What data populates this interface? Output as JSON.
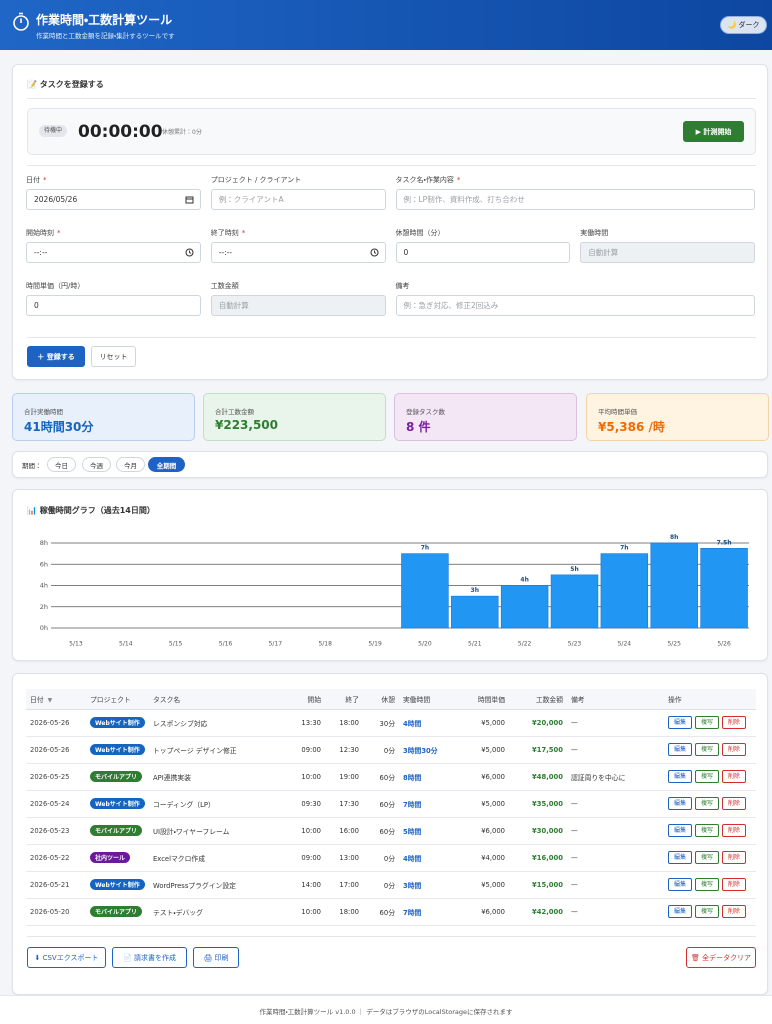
{
  "header": {
    "title": "作業時間・工数計算ツール",
    "subtitle": "作業時間と工数金額を記録・集計するツールです",
    "theme_button": "🌙 ダーク"
  },
  "form": {
    "title": "📝 タスクを登録する",
    "timer": {
      "status": "待機中",
      "time": "00:00:00",
      "break_total": "休憩累計：0分",
      "start_button": "▶ 計測開始"
    },
    "fields": [
      {
        "label": "日付",
        "required": "*",
        "value": "2026/05/26",
        "icon": "date"
      },
      {
        "label": "プロジェクト / クライアント",
        "placeholder": "例：クライアントA"
      },
      {
        "label": "タスク名・作業内容",
        "required": "*",
        "placeholder": "例：LP制作、資料作成、打ち合わせ"
      },
      {
        "label": "開始時刻",
        "required": "*",
        "value": "--:--",
        "icon": "time"
      },
      {
        "label": "終了時刻",
        "required": "*",
        "value": "--:--",
        "icon": "time"
      },
      {
        "label": "休憩時間（分）",
        "value": "0"
      },
      {
        "label": "実働時間",
        "placeholder": "自動計算",
        "readonly": true
      },
      {
        "label": "時間単価（円/時）",
        "value": "0"
      },
      {
        "label": "工数金額",
        "placeholder": "自動計算",
        "readonly": true
      },
      {
        "label": "備考",
        "placeholder": "例：急ぎ対応、修正2回込み"
      }
    ],
    "buttons": {
      "submit": "＋ 登録する",
      "reset": "リセット"
    }
  },
  "stats": [
    {
      "label": "合計実働時間",
      "value": "41時間30分"
    },
    {
      "label": "合計工数金額",
      "value": "¥223,500"
    },
    {
      "label": "登録タスク数",
      "value": "8 件"
    },
    {
      "label": "平均時間単価",
      "value": "¥5,386 /時"
    }
  ],
  "period": {
    "label": "期間：",
    "options": [
      "今日",
      "今週",
      "今月",
      "全期間"
    ],
    "active": 3
  },
  "chart_data": {
    "type": "bar",
    "title": "📊 稼働時間グラフ（過去14日間）",
    "categories": [
      "5/13",
      "5/14",
      "5/15",
      "5/16",
      "5/17",
      "5/18",
      "5/19",
      "5/20",
      "5/21",
      "5/22",
      "5/23",
      "5/24",
      "5/25",
      "5/26"
    ],
    "values": [
      0,
      0,
      0,
      0,
      0,
      0,
      0,
      7,
      3,
      4,
      5,
      7,
      8,
      7.5
    ],
    "value_labels": [
      null,
      null,
      null,
      null,
      null,
      null,
      null,
      "7h",
      "3h",
      "4h",
      "5h",
      "7h",
      "8h",
      "7.5h"
    ],
    "color": "#2196f3",
    "ylim": [
      0,
      8
    ],
    "yticks": [
      {
        "value": 0,
        "label": "0h"
      },
      {
        "value": 2,
        "label": "2h"
      },
      {
        "value": 4,
        "label": "4h"
      },
      {
        "value": 6,
        "label": "6h"
      },
      {
        "value": 8,
        "label": "8h"
      }
    ],
    "grid": true
  },
  "table": {
    "columns": [
      "日付",
      "プロジェクト",
      "タスク名",
      "開始",
      "終了",
      "休憩",
      "実働時間",
      "時間単価",
      "工数金額",
      "備考",
      "操作"
    ],
    "sort_indicator": "▼",
    "rows": [
      [
        "2026-05-26",
        "Webサイト制作",
        "レスポンシブ対応",
        "13:30",
        "18:00",
        "30分",
        "4時間",
        "¥5,000",
        "¥20,000",
        "—"
      ],
      [
        "2026-05-26",
        "Webサイト制作",
        "トップページ デザイン修正",
        "09:00",
        "12:30",
        "0分",
        "3時間30分",
        "¥5,000",
        "¥17,500",
        "—"
      ],
      [
        "2026-05-25",
        "モバイルアプリ",
        "API連携実装",
        "10:00",
        "19:00",
        "60分",
        "8時間",
        "¥6,000",
        "¥48,000",
        "認証周りを中心に"
      ],
      [
        "2026-05-24",
        "Webサイト制作",
        "コーディング（LP）",
        "09:30",
        "17:30",
        "60分",
        "7時間",
        "¥5,000",
        "¥35,000",
        "—"
      ],
      [
        "2026-05-23",
        "モバイルアプリ",
        "UI設計・ワイヤーフレーム",
        "10:00",
        "16:00",
        "60分",
        "5時間",
        "¥6,000",
        "¥30,000",
        "—"
      ],
      [
        "2026-05-22",
        "社内ツール",
        "Excelマクロ作成",
        "09:00",
        "13:00",
        "0分",
        "4時間",
        "¥4,000",
        "¥16,000",
        "—"
      ],
      [
        "2026-05-21",
        "Webサイト制作",
        "WordPressプラグイン設定",
        "14:00",
        "17:00",
        "0分",
        "3時間",
        "¥5,000",
        "¥15,000",
        "—"
      ],
      [
        "2026-05-20",
        "モバイルアプリ",
        "テスト・デバッグ",
        "10:00",
        "18:00",
        "60分",
        "7時間",
        "¥6,000",
        "¥42,000",
        "—"
      ]
    ],
    "badge_colors": [
      "#1565c0",
      "#1565c0",
      "#2e7d32",
      "#1565c0",
      "#2e7d32",
      "#6a1b9a",
      "#1565c0",
      "#2e7d32"
    ],
    "actions": [
      "編集",
      "複写",
      "削除"
    ]
  },
  "buttons": {
    "export": "⬇ CSVエクスポート",
    "invoice": "📄 請求書を作成",
    "print": "🖨 印刷",
    "clear": "🗑 全データクリア"
  },
  "footer": "作業時間・工数計算ツール v1.0.0 ｜ データはブラウザのLocalStorageに保存されます"
}
